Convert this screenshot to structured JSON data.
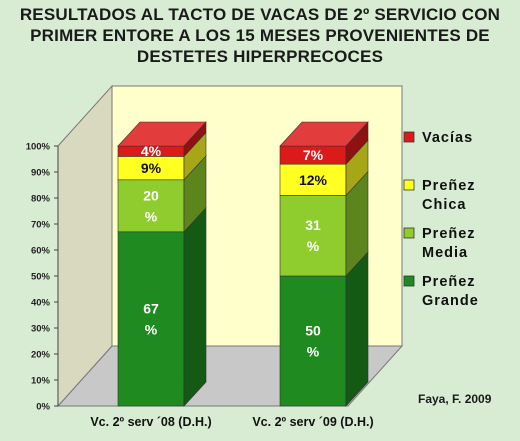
{
  "chart_data": {
    "type": "bar",
    "stacked": true,
    "percent_stacked": true,
    "three_d": true,
    "title_lines": [
      "RESULTADOS AL TACTO DE VACAS DE 2º SERVICIO CON",
      "PRIMER ENTORE A LOS 15 MESES PROVENIENTES DE",
      "DESTETES HIPERPRECOCES"
    ],
    "categories": [
      "Vc. 2º serv ´08 (D.H.)",
      "Vc. 2º serv ´09 (D.H.)"
    ],
    "series": [
      {
        "name": "Preñez Grande",
        "legend_lines": [
          "Preñez",
          "Grande"
        ],
        "color": "#1f8a1f",
        "values": [
          67,
          50
        ],
        "labels": [
          [
            "67",
            "%"
          ],
          [
            "50",
            "%"
          ]
        ]
      },
      {
        "name": "Preñez Media",
        "legend_lines": [
          "Preñez",
          "Media"
        ],
        "color": "#8fcc2e",
        "values": [
          20,
          31
        ],
        "labels": [
          [
            "20",
            "%"
          ],
          [
            "31",
            "%"
          ]
        ]
      },
      {
        "name": "Preñez Chica",
        "legend_lines": [
          "Preñez",
          "Chica"
        ],
        "color": "#ffff22",
        "values": [
          9,
          12
        ],
        "labels": [
          [
            "9%"
          ],
          [
            "12%"
          ]
        ]
      },
      {
        "name": "Vacías",
        "legend_lines": [
          "Vacías"
        ],
        "color": "#dd1a1a",
        "values": [
          4,
          7
        ],
        "labels": [
          [
            "4%"
          ],
          [
            "7%"
          ]
        ]
      }
    ],
    "y_ticks": [
      "0%",
      "10%",
      "20%",
      "30%",
      "40%",
      "50%",
      "60%",
      "70%",
      "80%",
      "90%",
      "100%"
    ],
    "ylim": [
      0,
      100
    ],
    "grid": false,
    "legend_position": "right",
    "plot_background": "#ffffcc",
    "source": "Faya, F. 2009"
  }
}
